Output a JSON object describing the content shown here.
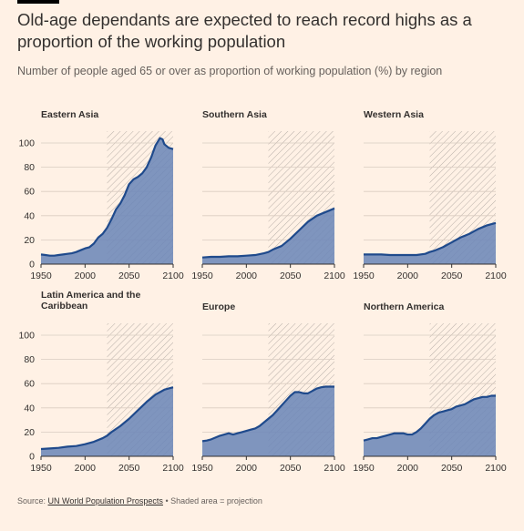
{
  "header": {
    "title": "Old-age dependants are expected to reach record highs as a proportion of the working population",
    "subtitle": "Number of people aged 65 or over as proportion of working population (%) by region"
  },
  "footer": {
    "source_prefix": "Source: ",
    "source_link": "UN World Population Prospects",
    "source_suffix": " • Shaded area = projection"
  },
  "colors": {
    "area_fill": "#6D87B8",
    "line": "#1F4A8C",
    "grid": "#D9CCC1",
    "background": "#FFF1E5",
    "projection_hatch": "#B8AFA8",
    "text": "#33302E"
  },
  "chart_data": [
    {
      "type": "area",
      "title": "Eastern Asia",
      "x": [
        1950,
        1955,
        1960,
        1965,
        1970,
        1975,
        1980,
        1985,
        1990,
        1995,
        2000,
        2005,
        2010,
        2015,
        2020,
        2025,
        2030,
        2035,
        2040,
        2045,
        2050,
        2055,
        2060,
        2065,
        2070,
        2075,
        2080,
        2085,
        2088,
        2090,
        2095,
        2100
      ],
      "y": [
        8,
        7.5,
        7,
        7,
        7.5,
        8,
        8.5,
        9,
        10,
        11.5,
        13,
        14,
        17,
        22,
        25,
        30,
        37,
        45,
        50,
        57,
        66,
        70,
        72,
        75,
        80,
        88,
        98,
        104,
        103,
        99,
        96,
        95
      ],
      "xlim": [
        1950,
        2100
      ],
      "ylim": [
        0,
        100
      ],
      "xticks": [
        1950,
        2000,
        2050,
        2100
      ],
      "yticks": [
        0,
        20,
        40,
        60,
        80,
        100
      ],
      "projection_start": 2025
    },
    {
      "type": "area",
      "title": "Southern Asia",
      "x": [
        1950,
        1960,
        1970,
        1980,
        1990,
        2000,
        2010,
        2020,
        2025,
        2030,
        2040,
        2050,
        2060,
        2070,
        2080,
        2090,
        2100
      ],
      "y": [
        5.5,
        6,
        6,
        6.5,
        6.5,
        7,
        7.5,
        9,
        10,
        12,
        15,
        21,
        28,
        35,
        40,
        43,
        46
      ],
      "xlim": [
        1950,
        2100
      ],
      "ylim": [
        0,
        100
      ],
      "xticks": [
        1950,
        2000,
        2050,
        2100
      ],
      "yticks": [
        0,
        20,
        40,
        60,
        80,
        100
      ],
      "projection_start": 2025
    },
    {
      "type": "area",
      "title": "Western Asia",
      "x": [
        1950,
        1960,
        1970,
        1980,
        1990,
        2000,
        2010,
        2020,
        2025,
        2030,
        2040,
        2050,
        2060,
        2070,
        2080,
        2090,
        2100
      ],
      "y": [
        8,
        8,
        8,
        7.5,
        7.5,
        7.5,
        7.5,
        8.5,
        10,
        11,
        14,
        18,
        22,
        25,
        29,
        32,
        34
      ],
      "xlim": [
        1950,
        2100
      ],
      "ylim": [
        0,
        100
      ],
      "xticks": [
        1950,
        2000,
        2050,
        2100
      ],
      "yticks": [
        0,
        20,
        40,
        60,
        80,
        100
      ],
      "projection_start": 2025
    },
    {
      "type": "area",
      "title": "Latin America and the Caribbean",
      "x": [
        1950,
        1960,
        1970,
        1980,
        1990,
        2000,
        2010,
        2020,
        2025,
        2030,
        2040,
        2050,
        2060,
        2070,
        2080,
        2090,
        2100
      ],
      "y": [
        6,
        6.5,
        7,
        8,
        8.5,
        10,
        12,
        15,
        17,
        20,
        25,
        31,
        38,
        45,
        51,
        55,
        57
      ],
      "xlim": [
        1950,
        2100
      ],
      "ylim": [
        0,
        100
      ],
      "xticks": [
        1950,
        2000,
        2050,
        2100
      ],
      "yticks": [
        0,
        20,
        40,
        60,
        80,
        100
      ],
      "projection_start": 2025
    },
    {
      "type": "area",
      "title": "Europe",
      "x": [
        1950,
        1955,
        1960,
        1965,
        1970,
        1975,
        1980,
        1985,
        1990,
        1995,
        2000,
        2005,
        2010,
        2015,
        2020,
        2025,
        2030,
        2035,
        2040,
        2045,
        2050,
        2055,
        2060,
        2065,
        2070,
        2075,
        2080,
        2085,
        2090,
        2095,
        2100
      ],
      "y": [
        12.5,
        13,
        14,
        15.5,
        17,
        18,
        19,
        18,
        19,
        20,
        21,
        22,
        23,
        25,
        28,
        31,
        34,
        38,
        42,
        46,
        50,
        53,
        53,
        52,
        52,
        54,
        56,
        57,
        57.5,
        57.5,
        57.5
      ],
      "xlim": [
        1950,
        2100
      ],
      "ylim": [
        0,
        100
      ],
      "xticks": [
        1950,
        2000,
        2050,
        2100
      ],
      "yticks": [
        0,
        20,
        40,
        60,
        80,
        100
      ],
      "projection_start": 2025
    },
    {
      "type": "area",
      "title": "Northern America",
      "x": [
        1950,
        1955,
        1960,
        1965,
        1970,
        1975,
        1980,
        1985,
        1990,
        1995,
        2000,
        2005,
        2010,
        2015,
        2020,
        2025,
        2030,
        2035,
        2040,
        2045,
        2050,
        2055,
        2060,
        2065,
        2070,
        2075,
        2080,
        2085,
        2090,
        2095,
        2100
      ],
      "y": [
        13,
        14,
        15,
        15,
        16,
        17,
        18,
        19,
        19,
        19,
        18,
        18,
        20,
        23,
        27,
        31,
        34,
        36,
        37,
        38,
        39,
        41,
        42,
        43,
        45,
        47,
        48,
        49,
        49,
        50,
        50
      ],
      "xlim": [
        1950,
        2100
      ],
      "ylim": [
        0,
        100
      ],
      "xticks": [
        1950,
        2000,
        2050,
        2100
      ],
      "yticks": [
        0,
        20,
        40,
        60,
        80,
        100
      ],
      "projection_start": 2025
    }
  ]
}
